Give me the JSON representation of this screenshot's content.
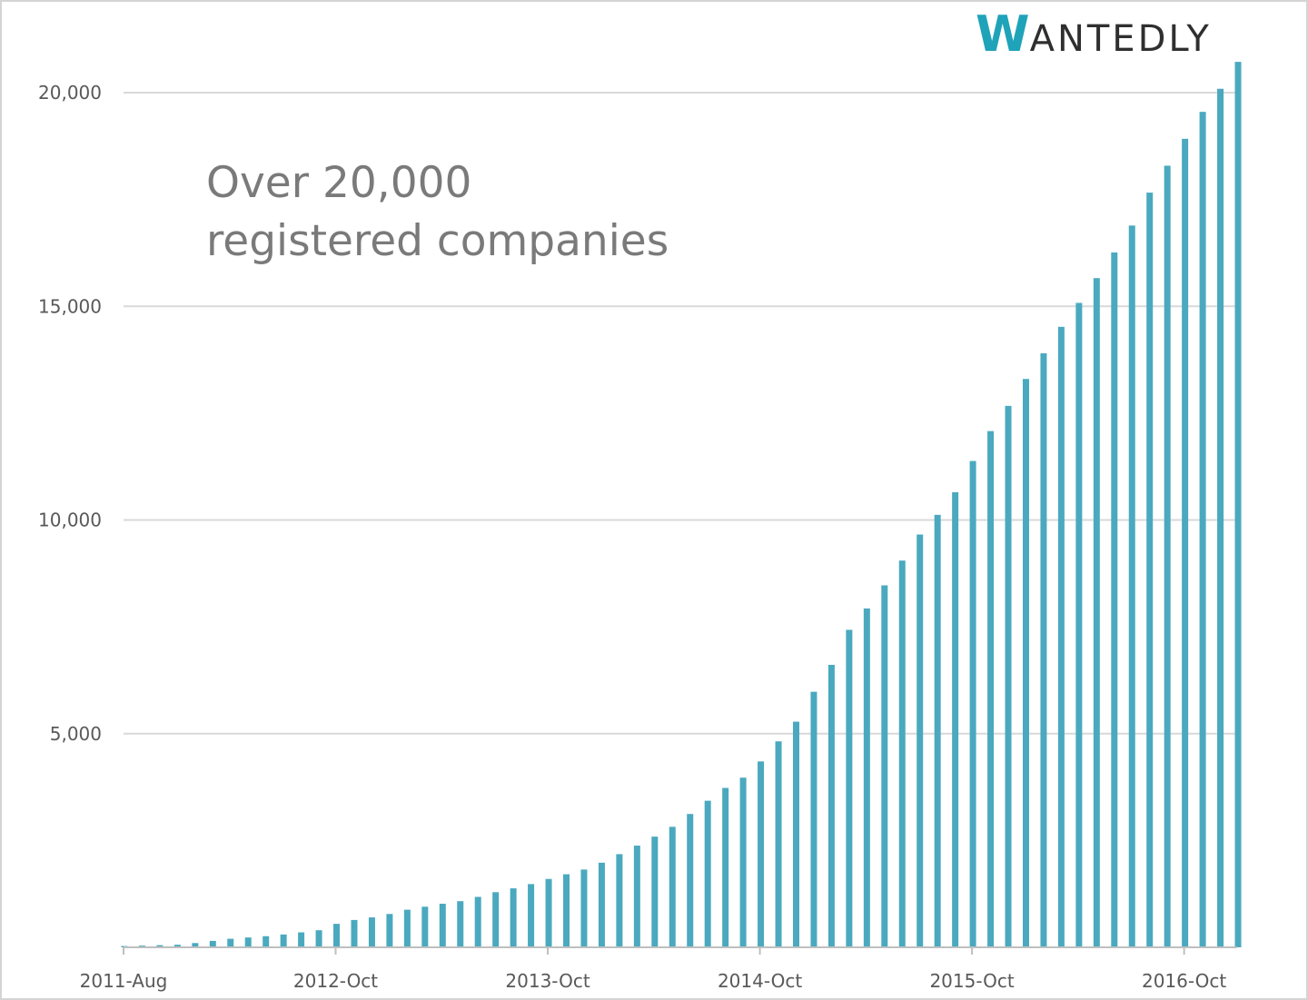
{
  "brand": {
    "logo_text": "WANTEDLY",
    "logo_initial": "W",
    "logo_rest": "ANTEDLY",
    "accent_color": "#1fa3b9",
    "text_color": "#2f2f2f"
  },
  "headline": {
    "line1": "Over 20,000",
    "line2": "registered companies"
  },
  "chart_data": {
    "type": "bar",
    "title": "",
    "xlabel": "",
    "ylabel": "",
    "ylim": [
      0,
      20000
    ],
    "ytick_values": [
      5000,
      10000,
      15000,
      20000
    ],
    "ytick_labels": [
      "5,000",
      "10,000",
      "15,000",
      "20,000"
    ],
    "xtick_labels": [
      "2011-Aug",
      "2012-Oct",
      "2013-Oct",
      "2014-Oct",
      "2015-Oct",
      "2016-Oct"
    ],
    "xtick_indices": [
      0,
      12,
      24,
      36,
      48,
      60
    ],
    "bar_color": "#4aa9bf",
    "grid": true,
    "series": [
      {
        "values": [
          30,
          40,
          50,
          60,
          100,
          150,
          200,
          230,
          260,
          300,
          350,
          400,
          550,
          640,
          700,
          780,
          880,
          950,
          1020,
          1080,
          1180,
          1290,
          1380,
          1480,
          1600,
          1710,
          1820,
          1980,
          2180,
          2380,
          2590,
          2820,
          3120,
          3430,
          3730,
          3970,
          4350,
          4820,
          5280,
          5980,
          6610,
          7430,
          7930,
          8470,
          9050,
          9660,
          10120,
          10650,
          11380,
          12080,
          12670,
          13300,
          13900,
          14520,
          15080,
          15660,
          16260,
          16890,
          17660,
          18290,
          18920,
          19550,
          20090,
          20720
        ]
      }
    ]
  }
}
